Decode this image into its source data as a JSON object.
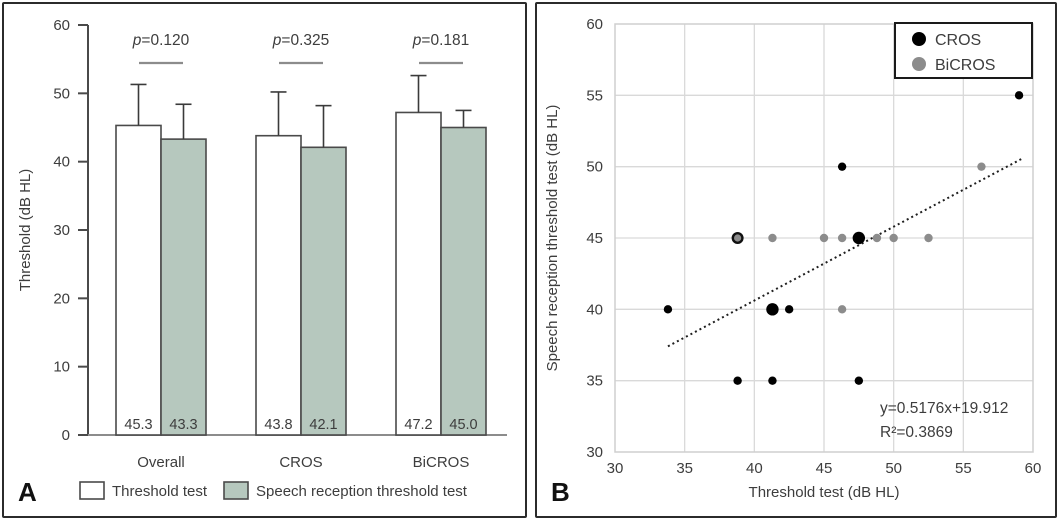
{
  "figure": {
    "panel_a_label": "A",
    "panel_b_label": "B"
  },
  "colors": {
    "bar_fill_threshold": "#ffffff",
    "bar_fill_srt": "#b6c8be",
    "bar_stroke": "#4a4a4a",
    "cros_marker": "#000000",
    "bicros_marker": "#8c8c8c",
    "gridline": "#d9d9d9",
    "significance_line": "#8c8c8c",
    "text": "#3d3d3d"
  },
  "chart_data": [
    {
      "type": "bar",
      "panel": "A",
      "ylabel": "Threshold (dB HL)",
      "ylim": [
        0,
        60
      ],
      "ytick_step": 10,
      "categories": [
        "Overall",
        "CROS",
        "BiCROS"
      ],
      "series": [
        {
          "name": "Threshold test",
          "fill": "#ffffff",
          "values": [
            45.3,
            43.8,
            47.2
          ],
          "errors_upper": [
            6.0,
            6.4,
            5.4
          ]
        },
        {
          "name": "Speech reception threshold test",
          "fill": "#b6c8be",
          "values": [
            43.3,
            42.1,
            45.0
          ],
          "errors_upper": [
            5.1,
            6.1,
            2.5
          ]
        }
      ],
      "p_values": [
        "p=0.120",
        "p=0.325",
        "p=0.181"
      ],
      "value_labels_shown": true,
      "grid": false,
      "legend_position": "bottom"
    },
    {
      "type": "scatter",
      "panel": "B",
      "xlabel": "Threshold test (dB HL)",
      "ylabel": "Speech reception threshold test (dB HL)",
      "xlim": [
        30,
        60
      ],
      "ylim": [
        30,
        60
      ],
      "xtick_step": 5,
      "ytick_step": 5,
      "grid": true,
      "legend_position": "top-right",
      "series": [
        {
          "name": "CROS",
          "color": "#000000",
          "points": [
            {
              "x": 33.8,
              "y": 40
            },
            {
              "x": 38.8,
              "y": 35
            },
            {
              "x": 41.3,
              "y": 35
            },
            {
              "x": 41.3,
              "y": 40,
              "marker": "large"
            },
            {
              "x": 42.5,
              "y": 40
            },
            {
              "x": 46.3,
              "y": 50
            },
            {
              "x": 47.5,
              "y": 35
            },
            {
              "x": 47.5,
              "y": 45,
              "marker": "large"
            },
            {
              "x": 59.0,
              "y": 55
            }
          ]
        },
        {
          "name": "BiCROS",
          "color": "#8c8c8c",
          "points": [
            {
              "x": 38.8,
              "y": 45,
              "marker": "outlined"
            },
            {
              "x": 41.3,
              "y": 45
            },
            {
              "x": 45.0,
              "y": 45
            },
            {
              "x": 46.3,
              "y": 45
            },
            {
              "x": 46.3,
              "y": 40
            },
            {
              "x": 48.8,
              "y": 45
            },
            {
              "x": 50.0,
              "y": 45
            },
            {
              "x": 52.5,
              "y": 45
            },
            {
              "x": 56.3,
              "y": 50
            }
          ]
        }
      ],
      "trendline": {
        "style": "dotted",
        "slope": 0.5176,
        "intercept": 19.912,
        "x_start": 33.8,
        "x_end": 59.2,
        "equation": "y=0.5176x+19.912",
        "r_squared": "R²=0.3869"
      }
    }
  ]
}
